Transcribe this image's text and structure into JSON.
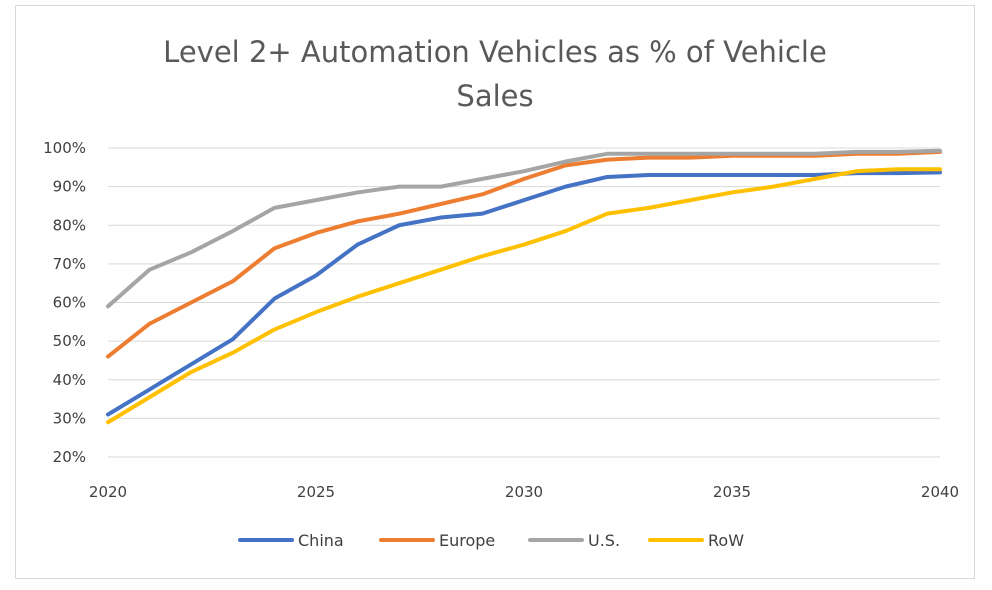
{
  "chart_data": {
    "type": "line",
    "title_lines": [
      "Level 2+ Automation Vehicles as % of Vehicle",
      "Sales"
    ],
    "xlabel": "",
    "ylabel": "",
    "xlim": [
      2020,
      2040
    ],
    "ylim": [
      0.2,
      1.0
    ],
    "y_ticks": [
      "20%",
      "30%",
      "40%",
      "50%",
      "60%",
      "70%",
      "80%",
      "90%",
      "100%"
    ],
    "x_ticks": [
      "2020",
      "2025",
      "2030",
      "2035",
      "2040"
    ],
    "grid": "horizontal",
    "legend_position": "bottom",
    "x": [
      2020,
      2021,
      2022,
      2023,
      2024,
      2025,
      2026,
      2027,
      2028,
      2029,
      2030,
      2031,
      2032,
      2033,
      2034,
      2035,
      2036,
      2037,
      2038,
      2039,
      2040
    ],
    "series": [
      {
        "name": "China",
        "color": "#4472c4",
        "values": [
          0.31,
          0.375,
          0.44,
          0.505,
          0.61,
          0.67,
          0.75,
          0.8,
          0.82,
          0.83,
          0.865,
          0.9,
          0.925,
          0.93,
          0.93,
          0.93,
          0.93,
          0.93,
          0.935,
          0.935,
          0.937
        ]
      },
      {
        "name": "Europe",
        "color": "#ed7d31",
        "values": [
          0.46,
          0.545,
          0.6,
          0.655,
          0.74,
          0.78,
          0.81,
          0.83,
          0.855,
          0.88,
          0.92,
          0.955,
          0.97,
          0.975,
          0.975,
          0.98,
          0.98,
          0.98,
          0.985,
          0.985,
          0.99
        ]
      },
      {
        "name": "U.S.",
        "color": "#a5a5a5",
        "values": [
          0.59,
          0.685,
          0.73,
          0.785,
          0.845,
          0.865,
          0.885,
          0.9,
          0.9,
          0.92,
          0.94,
          0.965,
          0.985,
          0.985,
          0.985,
          0.985,
          0.985,
          0.985,
          0.99,
          0.99,
          0.993
        ]
      },
      {
        "name": "RoW",
        "color": "#ffc000",
        "values": [
          0.29,
          0.355,
          0.42,
          0.47,
          0.53,
          0.575,
          0.615,
          0.65,
          0.685,
          0.72,
          0.75,
          0.785,
          0.83,
          0.845,
          0.865,
          0.885,
          0.9,
          0.92,
          0.94,
          0.945,
          0.945
        ]
      }
    ]
  }
}
